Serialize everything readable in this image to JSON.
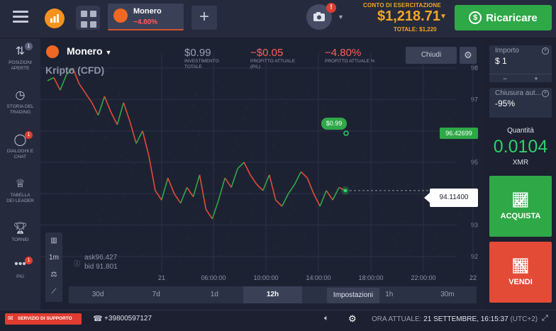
{
  "topbar": {
    "asset_tab": {
      "name": "Monero",
      "change": "−4.80%"
    },
    "account": {
      "label": "CONTO DI ESERCITAZIONE",
      "balance": "$1,218.71",
      "total": "TOTALE: $1,220"
    },
    "recharge_label": "Ricaricare",
    "camera_alert": "!"
  },
  "sidebar": {
    "items": [
      {
        "label": "POSIZIONI APERTE",
        "badge": "1"
      },
      {
        "label": "STORIA DEL TRADING"
      },
      {
        "label": "DIALOGHI E CHAT",
        "badge": "1"
      },
      {
        "label": "TABELLA DEI LEADER"
      },
      {
        "label": "TORNEI"
      },
      {
        "label": "PIÙ",
        "badge": "1"
      }
    ]
  },
  "chart_header": {
    "asset": "Monero",
    "type": "Kripto (CFD)",
    "investment": {
      "value": "$0.99",
      "label": "INVESTIMENTO TOTALE"
    },
    "pl": {
      "value": "−$0.05",
      "label": "PROFITTO ATTUALE (P/L)"
    },
    "pl_pct": {
      "value": "−4.80%",
      "label": "PROFITTO ATTUALE %"
    },
    "close_label": "Chiudi"
  },
  "chart_data": {
    "type": "line",
    "series": [],
    "y_ticks": [
      "98",
      "97",
      "96",
      "95",
      "94",
      "93",
      "92"
    ],
    "x_ticks": [
      "21",
      "06:00:00",
      "10:00:00",
      "14:00:00",
      "18:00:00",
      "22:00:00",
      "22"
    ],
    "ylim": [
      91.5,
      98.5
    ],
    "price_label": "96.42699",
    "current_price": "94.11400",
    "investment_marker": "$0.99",
    "ask": "ask96.427",
    "bid": "bid 91.801",
    "close_trace": [
      97.6,
      97.7,
      97.3,
      97.8,
      98.0,
      97.5,
      97.2,
      96.9,
      96.5,
      97.1,
      96.6,
      96.2,
      96.9,
      96.3,
      95.6,
      96.0,
      95.2,
      94.1,
      93.8,
      94.5,
      94.0,
      93.7,
      94.2,
      93.9,
      94.6,
      93.5,
      93.2,
      93.8,
      94.5,
      94.2,
      94.8,
      95.0,
      94.6,
      94.3,
      94.1,
      94.6,
      93.8,
      93.6,
      94.0,
      94.3,
      94.7,
      94.5,
      94.0,
      93.6,
      94.1,
      93.8,
      94.2,
      94.1
    ]
  },
  "chart_tools": {
    "interval": "1m"
  },
  "timeframes": [
    "30d",
    "7d",
    "1d",
    "12h",
    "3h",
    "1h",
    "30m"
  ],
  "timeframe_selected": "12h",
  "tooltip": "Impostazioni",
  "right_panel": {
    "amount": {
      "label": "Importo",
      "value": "$  1",
      "minus": "−",
      "plus": "+"
    },
    "autoclose": {
      "label": "Chiusura aut...",
      "value": "-95%"
    },
    "quantity": {
      "label": "Quantità",
      "value": "0.0104",
      "unit": "XMR"
    },
    "buy_label": "ACQUISTA",
    "sell_label": "VENDI"
  },
  "bottombar": {
    "support": "SERVIZIO DI SUPPORTO",
    "phone": "+39800597127",
    "time_label": "ORA ATTUALE:",
    "time_value": "21 SETTEMBRE, 16:15:37",
    "tz": "(UTC+2)"
  },
  "colors": {
    "up": "#2fa848",
    "down": "#e34b37",
    "accent": "#f5a623"
  }
}
